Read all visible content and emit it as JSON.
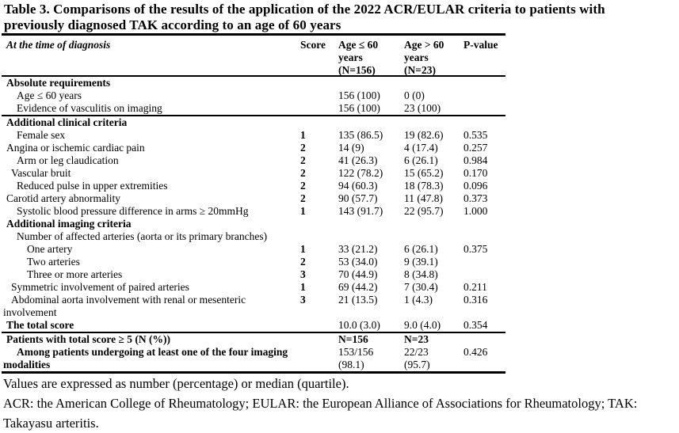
{
  "title": "Table 3. Comparisons of the results of the application of the 2022 ACR/EULAR criteria to patients with\npreviously diagnosed TAK according to an age of 60 years",
  "table": {
    "header": {
      "label": "At the time of diagnosis",
      "score": "Score",
      "col1": "Age ≤ 60\nyears\n(N=156)",
      "col2": "Age > 60\nyears\n(N=23)",
      "p": "P-value"
    },
    "rows": [
      {
        "label": "Absolute requirements",
        "indent": 0,
        "bold": true,
        "section": true
      },
      {
        "label": "Age ≤ 60 years",
        "indent": 2,
        "v1": "156 (100)",
        "v2": "0 (0)"
      },
      {
        "label": "Evidence of vasculitis on imaging",
        "indent": 2,
        "v1": "156 (100)",
        "v2": "23 (100)",
        "rule_after": true
      },
      {
        "label": "Additional clinical criteria",
        "indent": 0,
        "bold": true,
        "section": true
      },
      {
        "label": "Female sex",
        "indent": 2,
        "score": "1",
        "v1": "135 (86.5)",
        "v2": "19 (82.6)",
        "p": "0.535"
      },
      {
        "label": "Angina or ischemic cardiac pain",
        "indent": 0,
        "score": "2",
        "v1": "14 (9)",
        "v2": "4 (17.4)",
        "p": "0.257"
      },
      {
        "label": "Arm or leg claudication",
        "indent": 2,
        "score": "2",
        "v1": "41 (26.3)",
        "v2": "6 (26.1)",
        "p": "0.984"
      },
      {
        "label": "Vascular bruit",
        "indent": 1,
        "score": "2",
        "v1": "122 (78.2)",
        "v2": "15 (65.2)",
        "p": "0.170"
      },
      {
        "label": "Reduced pulse in upper extremities",
        "indent": 2,
        "score": "2",
        "v1": "94 (60.3)",
        "v2": "18 (78.3)",
        "p": "0.096"
      },
      {
        "label": "Carotid artery abnormality",
        "indent": 0,
        "score": "2",
        "v1": "90 (57.7)",
        "v2": "11 (47.8)",
        "p": "0.373"
      },
      {
        "label": "Systolic blood pressure difference in arms ≥ 20mmHg",
        "indent": 2,
        "score": "1",
        "v1": "143 (91.7)",
        "v2": "22 (95.7)",
        "p": "1.000"
      },
      {
        "label": "Additional imaging criteria",
        "indent": 0,
        "bold": true,
        "section": true
      },
      {
        "label": "Number of affected arteries (aorta or its primary branches)",
        "indent": 2
      },
      {
        "label": "One artery",
        "indent": 3,
        "score": "1",
        "v1": "33 (21.2)",
        "v2": "6 (26.1)",
        "p": "0.375"
      },
      {
        "label": "Two arteries",
        "indent": 3,
        "score": "2",
        "v1": "53 (34.0)",
        "v2": "9 (39.1)"
      },
      {
        "label": "Three or more arteries",
        "indent": 3,
        "score": "3",
        "v1": "70 (44.9)",
        "v2": "8 (34.8)"
      },
      {
        "label": "Symmetric involvement of paired arteries",
        "indent": 1,
        "score": "1",
        "v1": "69 (44.2)",
        "v2": "7 (30.4)",
        "p": "0.211"
      },
      {
        "label": "Abdominal aorta involvement with renal or mesenteric\ninvolvement",
        "indent": 1,
        "hang": true,
        "score": "3",
        "v1": "21 (13.5)",
        "v2": "1 (4.3)",
        "p": "0.316"
      },
      {
        "label": "The total score",
        "indent": 0,
        "bold": true,
        "v1": "10.0 (3.0)",
        "v2": "9.0 (4.0)",
        "p": "0.354",
        "rule_after": true
      },
      {
        "label": "Patients with total score ≥ 5 (N (%))",
        "indent": 0,
        "bold": true,
        "v1": "N=156",
        "v2": "N=23",
        "v_bold": true
      },
      {
        "label": "Among patients undergoing at least one of the four imaging\nmodalities",
        "indent": 2,
        "bold": true,
        "hang": true,
        "v1": "153/156\n(98.1)",
        "v2": "22/23\n(95.7)",
        "p": "0.426"
      }
    ]
  },
  "footnotes": [
    "Values are expressed as number (percentage) or median (quartile).",
    "ACR: the American College of Rheumatology; EULAR: the European Alliance of Associations for Rheumatol­ogy; TAK: Takayasu arteritis."
  ]
}
